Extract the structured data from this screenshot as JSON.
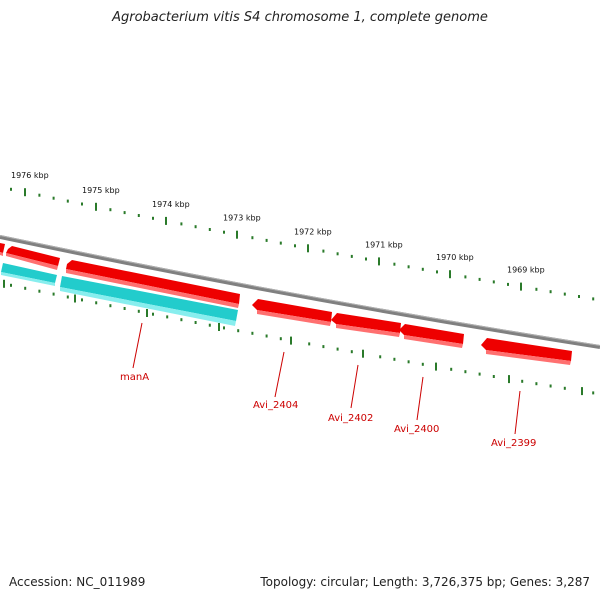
{
  "title": "Agrobacterium vitis S4 chromosome 1, complete genome",
  "footer": {
    "accession": "Accession: NC_011989",
    "summary": "Topology: circular; Length: 3,726,375 bp; Genes: 3,287"
  },
  "colors": {
    "backbone": "#808080",
    "forward_gene": "#ee0000",
    "forward_gene_light": "#ff7070",
    "other_gene": "#22cccc",
    "other_gene_light": "#88eeee",
    "ticks": "#2a7a2a",
    "label": "#cc0000"
  },
  "kbp_ticks": [
    "1976 kbp",
    "1975 kbp",
    "1974 kbp",
    "1973 kbp",
    "1972 kbp",
    "1971 kbp",
    "1970 kbp",
    "1969 kbp"
  ],
  "gene_labels": [
    "manA",
    "Avi_2404",
    "Avi_2402",
    "Avi_2400",
    "Avi_2399"
  ]
}
